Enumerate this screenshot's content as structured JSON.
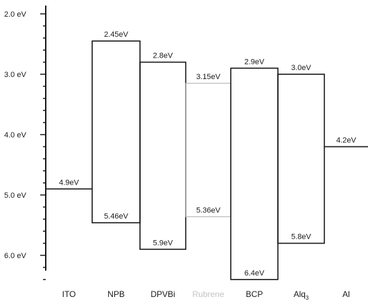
{
  "axis": {
    "ticks": [
      "2.0 eV",
      "3.0 eV",
      "4.0 eV",
      "5.0 eV",
      "6.0 eV"
    ],
    "tick_values": [
      2.0,
      3.0,
      4.0,
      5.0,
      6.0
    ],
    "range": [
      2.0,
      6.4
    ],
    "inverted": true
  },
  "materials": [
    {
      "name": "ITO",
      "sub": "",
      "type": "electrode",
      "level": 4.9,
      "level_label": "4.9eV",
      "faint": false
    },
    {
      "name": "NPB",
      "sub": "",
      "type": "band",
      "lumo": 2.45,
      "homo": 5.46,
      "lumo_label": "2.45eV",
      "homo_label": "5.46eV",
      "faint": false
    },
    {
      "name": "DPVBi",
      "sub": "",
      "type": "band",
      "lumo": 2.8,
      "homo": 5.9,
      "lumo_label": "2.8eV",
      "homo_label": "5.9eV",
      "faint": false
    },
    {
      "name": "Rubrene",
      "sub": "",
      "type": "band",
      "lumo": 3.15,
      "homo": 5.36,
      "lumo_label": "3.15eV",
      "homo_label": "5.36eV",
      "faint": true
    },
    {
      "name": "BCP",
      "sub": "",
      "type": "band",
      "lumo": 2.9,
      "homo": 6.4,
      "lumo_label": "2.9eV",
      "homo_label": "6.4eV",
      "faint": false
    },
    {
      "name": "Alq",
      "sub": "3",
      "type": "band",
      "lumo": 3.0,
      "homo": 5.8,
      "lumo_label": "3.0eV",
      "homo_label": "5.8eV",
      "faint": false
    },
    {
      "name": "Al",
      "sub": "",
      "type": "electrode",
      "level": 4.2,
      "level_label": "4.2eV",
      "faint": false
    }
  ],
  "colors": {
    "line": "#1a1a1a",
    "faint_line": "#b8b8b8",
    "faint_text": "#c4c4c4"
  }
}
